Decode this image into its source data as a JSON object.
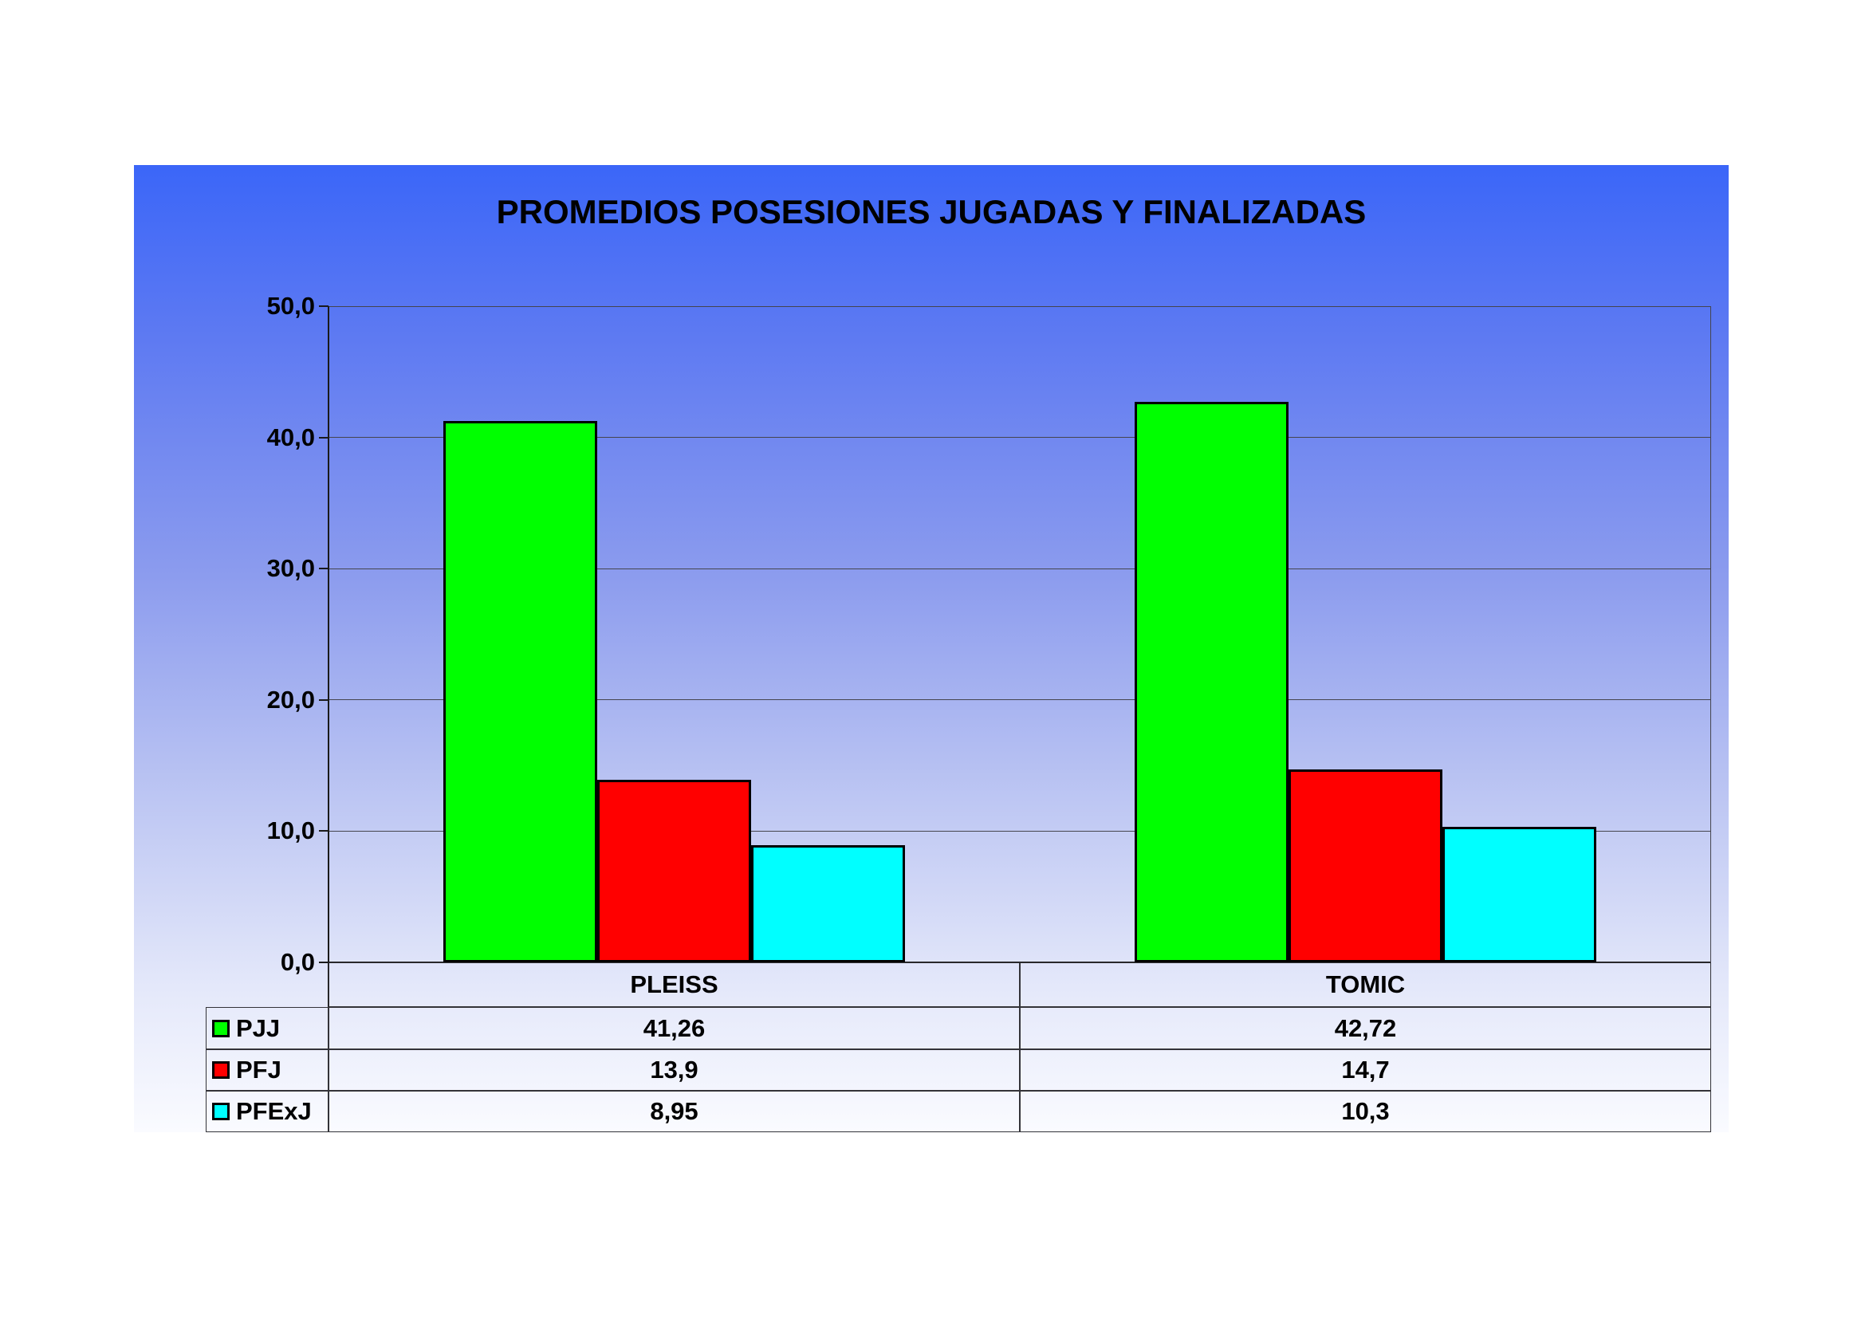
{
  "title": "PROMEDIOS POSESIONES JUGADAS Y FINALIZADAS",
  "chart_data": {
    "type": "bar",
    "title": "PROMEDIOS POSESIONES JUGADAS Y FINALIZADAS",
    "categories": [
      "PLEISS",
      "TOMIC"
    ],
    "series": [
      {
        "name": "PJJ",
        "color": "#00FF00",
        "values": [
          41.26,
          42.72
        ],
        "labels": [
          "41,26",
          "42,72"
        ]
      },
      {
        "name": "PFJ",
        "color": "#FF0000",
        "values": [
          13.9,
          14.7
        ],
        "labels": [
          "13,9",
          "14,7"
        ]
      },
      {
        "name": "PFExJ",
        "color": "#00FFFF",
        "values": [
          8.95,
          10.3
        ],
        "labels": [
          "8,95",
          "10,3"
        ]
      }
    ],
    "ylim": [
      0,
      50
    ],
    "ytick_interval": 10,
    "ytick_labels": [
      "0,0",
      "10,0",
      "20,0",
      "30,0",
      "40,0",
      "50,0"
    ],
    "xlabel": "",
    "ylabel": "",
    "grid": true,
    "legend_position": "table-left",
    "background_gradient_top": "#3B66F8",
    "background_gradient_bottom": "#FAFBFF",
    "bar_border_color": "#000000"
  }
}
